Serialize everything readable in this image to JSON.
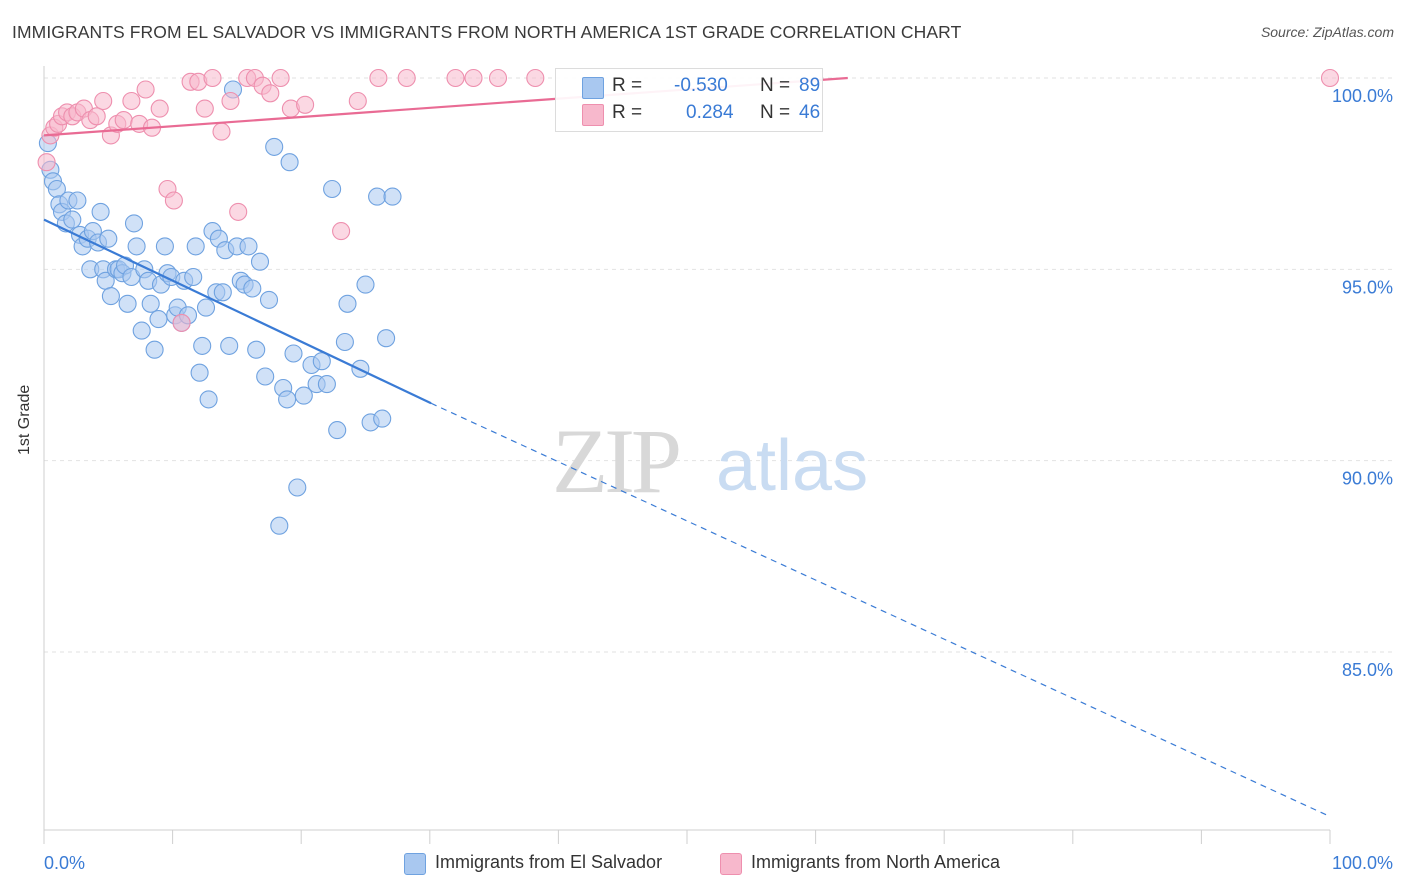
{
  "header": {
    "title": "IMMIGRANTS FROM EL SALVADOR VS IMMIGRANTS FROM NORTH AMERICA 1ST GRADE CORRELATION CHART",
    "source": "Source: ZipAtlas.com"
  },
  "watermark": {
    "zip": "ZIP",
    "atlas": "atlas"
  },
  "legend": {
    "rows": [
      {
        "r_label": "R =",
        "r_value": "-0.530",
        "n_label": "N =",
        "n_value": "89",
        "color": "#a9c8f0"
      },
      {
        "r_label": "R =",
        "r_value": "0.284",
        "n_label": "N =",
        "n_value": "46",
        "color": "#f7b8cc"
      }
    ]
  },
  "bottom_legend": [
    {
      "label": "Immigrants from El Salvador",
      "color": "#a9c8f0"
    },
    {
      "label": "Immigrants from North America",
      "color": "#f7b8cc"
    }
  ],
  "colors": {
    "blue_fill": "#a9c8f0",
    "blue_stroke": "#6fa2e0",
    "blue_line": "#3a7bd5",
    "pink_fill": "#f7b8cc",
    "pink_stroke": "#ee8fae",
    "pink_line": "#e96b94",
    "grid": "#e2e2e2",
    "tick_text": "#3a7bd5"
  },
  "chart_data": {
    "type": "scatter",
    "title": "IMMIGRANTS FROM EL SALVADOR VS IMMIGRANTS FROM NORTH AMERICA 1ST GRADE CORRELATION CHART",
    "xlabel": "",
    "ylabel": "1st Grade",
    "xlim": [
      0,
      100
    ],
    "ylim": [
      80.5,
      100.5
    ],
    "x_tick_labels": [
      "0.0%",
      "100.0%"
    ],
    "y_ticks": [
      85,
      90,
      95,
      100
    ],
    "y_tick_labels": [
      "85.0%",
      "90.0%",
      "95.0%",
      "100.0%"
    ],
    "grid": true,
    "legend_placement": "top-center",
    "series": [
      {
        "name": "Immigrants from El Salvador",
        "r": -0.53,
        "n": 89,
        "trend": {
          "x0": 0,
          "y0": 96.3,
          "x1": 30.1,
          "y1": 91.5,
          "dashed_to_x": 100,
          "dashed_to_y": 80.7
        },
        "points": [
          [
            0.3,
            98.3
          ],
          [
            0.5,
            97.6
          ],
          [
            0.7,
            97.3
          ],
          [
            1.0,
            97.1
          ],
          [
            1.2,
            96.7
          ],
          [
            1.4,
            96.5
          ],
          [
            1.7,
            96.2
          ],
          [
            1.9,
            96.8
          ],
          [
            2.2,
            96.3
          ],
          [
            2.6,
            96.8
          ],
          [
            2.8,
            95.9
          ],
          [
            3.0,
            95.6
          ],
          [
            3.4,
            95.8
          ],
          [
            3.6,
            95.0
          ],
          [
            3.8,
            96.0
          ],
          [
            4.2,
            95.7
          ],
          [
            4.4,
            96.5
          ],
          [
            4.6,
            95.0
          ],
          [
            4.8,
            94.7
          ],
          [
            5.0,
            95.8
          ],
          [
            5.2,
            94.3
          ],
          [
            5.6,
            95.0
          ],
          [
            5.8,
            95.0
          ],
          [
            6.1,
            94.9
          ],
          [
            6.3,
            95.1
          ],
          [
            6.5,
            94.1
          ],
          [
            6.8,
            94.8
          ],
          [
            7.0,
            96.2
          ],
          [
            7.2,
            95.6
          ],
          [
            7.6,
            93.4
          ],
          [
            7.8,
            95.0
          ],
          [
            8.1,
            94.7
          ],
          [
            8.3,
            94.1
          ],
          [
            8.6,
            92.9
          ],
          [
            8.9,
            93.7
          ],
          [
            9.1,
            94.6
          ],
          [
            9.4,
            95.6
          ],
          [
            9.6,
            94.9
          ],
          [
            9.9,
            94.8
          ],
          [
            10.2,
            93.8
          ],
          [
            10.4,
            94.0
          ],
          [
            10.7,
            93.6
          ],
          [
            10.9,
            94.7
          ],
          [
            11.2,
            93.8
          ],
          [
            11.6,
            94.8
          ],
          [
            11.8,
            95.6
          ],
          [
            12.1,
            92.3
          ],
          [
            12.3,
            93.0
          ],
          [
            12.6,
            94.0
          ],
          [
            12.8,
            91.6
          ],
          [
            13.1,
            96.0
          ],
          [
            13.4,
            94.4
          ],
          [
            13.6,
            95.8
          ],
          [
            13.9,
            94.4
          ],
          [
            14.1,
            95.5
          ],
          [
            14.4,
            93.0
          ],
          [
            14.7,
            99.7
          ],
          [
            15.0,
            95.6
          ],
          [
            15.3,
            94.7
          ],
          [
            15.6,
            94.6
          ],
          [
            15.9,
            95.6
          ],
          [
            16.2,
            94.5
          ],
          [
            16.5,
            92.9
          ],
          [
            16.8,
            95.2
          ],
          [
            17.2,
            92.2
          ],
          [
            17.5,
            94.2
          ],
          [
            17.9,
            98.2
          ],
          [
            18.3,
            88.3
          ],
          [
            18.6,
            91.9
          ],
          [
            18.9,
            91.6
          ],
          [
            19.1,
            97.8
          ],
          [
            19.4,
            92.8
          ],
          [
            19.7,
            89.3
          ],
          [
            20.2,
            91.7
          ],
          [
            20.8,
            92.5
          ],
          [
            21.2,
            92.0
          ],
          [
            21.6,
            92.6
          ],
          [
            22.0,
            92.0
          ],
          [
            22.4,
            97.1
          ],
          [
            22.8,
            90.8
          ],
          [
            23.4,
            93.1
          ],
          [
            23.6,
            94.1
          ],
          [
            24.6,
            92.4
          ],
          [
            25.0,
            94.6
          ],
          [
            25.4,
            91.0
          ],
          [
            25.9,
            96.9
          ],
          [
            26.3,
            91.1
          ],
          [
            27.1,
            96.9
          ],
          [
            26.6,
            93.2
          ]
        ]
      },
      {
        "name": "Immigrants from North America",
        "r": 0.284,
        "n": 46,
        "trend": {
          "x0": 0,
          "y0": 98.5,
          "x1": 62.5,
          "y1": 100.0
        },
        "points": [
          [
            0.2,
            97.8
          ],
          [
            0.5,
            98.5
          ],
          [
            0.8,
            98.7
          ],
          [
            1.1,
            98.8
          ],
          [
            1.4,
            99.0
          ],
          [
            1.8,
            99.1
          ],
          [
            2.2,
            99.0
          ],
          [
            2.6,
            99.1
          ],
          [
            3.1,
            99.2
          ],
          [
            3.6,
            98.9
          ],
          [
            4.1,
            99.0
          ],
          [
            4.6,
            99.4
          ],
          [
            5.2,
            98.5
          ],
          [
            5.7,
            98.8
          ],
          [
            6.2,
            98.9
          ],
          [
            6.8,
            99.4
          ],
          [
            7.4,
            98.8
          ],
          [
            7.9,
            99.7
          ],
          [
            8.4,
            98.7
          ],
          [
            9.0,
            99.2
          ],
          [
            9.6,
            97.1
          ],
          [
            10.1,
            96.8
          ],
          [
            10.7,
            93.6
          ],
          [
            11.4,
            99.9
          ],
          [
            12.0,
            99.9
          ],
          [
            12.5,
            99.2
          ],
          [
            13.1,
            100.0
          ],
          [
            13.8,
            98.6
          ],
          [
            14.5,
            99.4
          ],
          [
            15.1,
            96.5
          ],
          [
            15.8,
            100.0
          ],
          [
            16.4,
            100.0
          ],
          [
            17.0,
            99.8
          ],
          [
            17.6,
            99.6
          ],
          [
            18.4,
            100.0
          ],
          [
            19.2,
            99.2
          ],
          [
            20.3,
            99.3
          ],
          [
            23.1,
            96.0
          ],
          [
            24.4,
            99.4
          ],
          [
            26.0,
            100.0
          ],
          [
            28.2,
            100.0
          ],
          [
            32.0,
            100.0
          ],
          [
            33.4,
            100.0
          ],
          [
            35.3,
            100.0
          ],
          [
            38.2,
            100.0
          ],
          [
            100.0,
            100.0
          ]
        ]
      }
    ]
  }
}
